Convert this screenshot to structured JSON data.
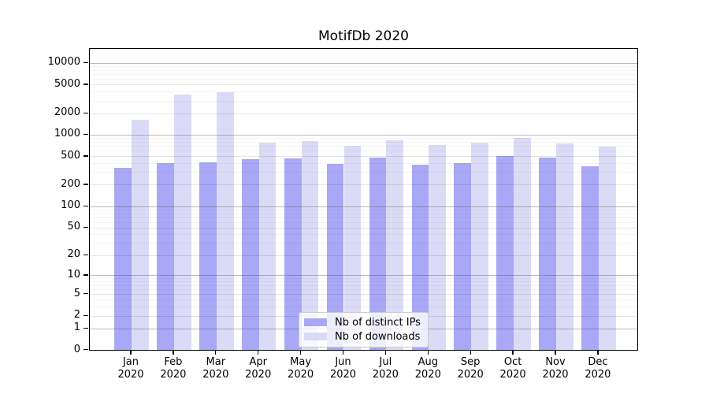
{
  "title": "MotifDb 2020",
  "legend": {
    "items": [
      {
        "label": "Nb of distinct IPs",
        "color": "#a8a8f6"
      },
      {
        "label": "Nb of downloads",
        "color": "#dbdbf8"
      }
    ]
  },
  "chart_data": {
    "type": "bar",
    "title": "MotifDb 2020",
    "categories": [
      "Jan 2020",
      "Feb 2020",
      "Mar 2020",
      "Apr 2020",
      "May 2020",
      "Jun 2020",
      "Jul 2020",
      "Aug 2020",
      "Sep 2020",
      "Oct 2020",
      "Nov 2020",
      "Dec 2020"
    ],
    "months": [
      "Jan",
      "Feb",
      "Mar",
      "Apr",
      "May",
      "Jun",
      "Jul",
      "Aug",
      "Sep",
      "Oct",
      "Nov",
      "Dec"
    ],
    "year": "2020",
    "series": [
      {
        "name": "Nb of distinct IPs",
        "color": "#a8a8f6",
        "values": [
          330,
          385,
          395,
          435,
          455,
          380,
          465,
          370,
          385,
          485,
          465,
          350
        ]
      },
      {
        "name": "Nb of downloads",
        "color": "#dbdbf8",
        "values": [
          1550,
          3500,
          3800,
          740,
          790,
          680,
          800,
          690,
          745,
          875,
          725,
          665
        ]
      }
    ],
    "yscale": "log10(value+1)",
    "y_tick_values": [
      0,
      1,
      2,
      5,
      10,
      20,
      50,
      100,
      200,
      500,
      1000,
      2000,
      5000,
      10000
    ],
    "ylim": [
      0,
      16000
    ],
    "grid": true,
    "legend_position": "lower center",
    "xlabel": "",
    "ylabel": ""
  }
}
